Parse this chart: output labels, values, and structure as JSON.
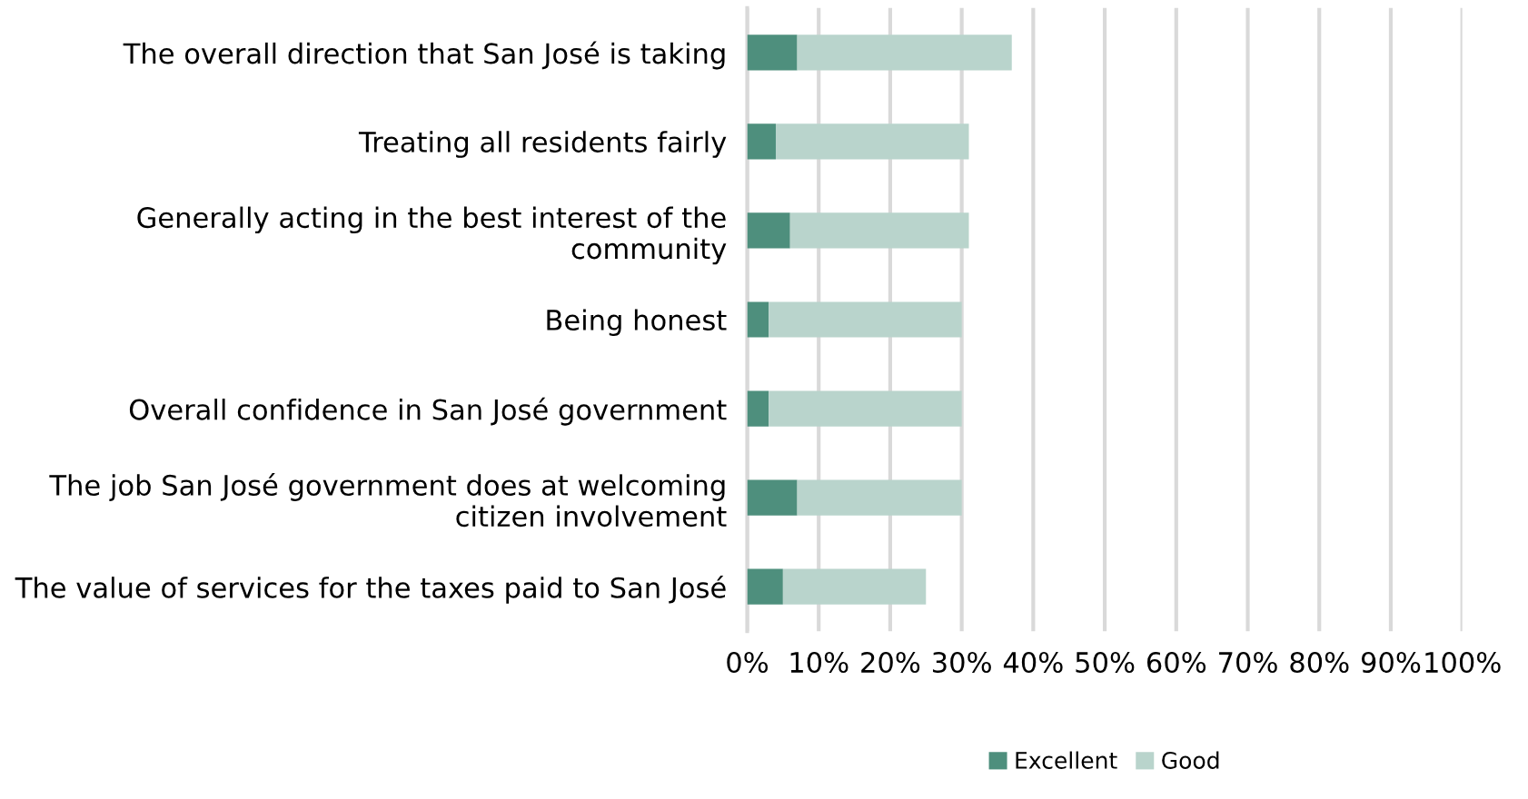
{
  "chart_data": {
    "type": "bar",
    "orientation": "horizontal",
    "stacked": true,
    "categories": [
      "The overall direction that San José is taking",
      "Treating all residents fairly",
      "Generally acting in the best interest of the community",
      "Being honest",
      "Overall confidence in San José government",
      "The job San José government does at welcoming citizen involvement",
      "The value of services for the taxes paid to San José"
    ],
    "series": [
      {
        "name": "Excellent",
        "color": "#4e8f7d",
        "values": [
          7,
          4,
          6,
          3,
          3,
          7,
          5
        ]
      },
      {
        "name": "Good",
        "color": "#b9d4cc",
        "values": [
          30,
          27,
          25,
          27,
          27,
          23,
          20
        ]
      }
    ],
    "xlim": [
      0,
      100
    ],
    "xticks": [
      {
        "value": 0,
        "label": "0%"
      },
      {
        "value": 10,
        "label": "10%"
      },
      {
        "value": 20,
        "label": "20%"
      },
      {
        "value": 30,
        "label": "30%"
      },
      {
        "value": 40,
        "label": "40%"
      },
      {
        "value": 50,
        "label": "50%"
      },
      {
        "value": 60,
        "label": "60%"
      },
      {
        "value": 70,
        "label": "70%"
      },
      {
        "value": 80,
        "label": "80%"
      },
      {
        "value": 90,
        "label": "90%"
      },
      {
        "value": 100,
        "label": "100%"
      }
    ],
    "grid": "x",
    "legend": "bottom"
  }
}
